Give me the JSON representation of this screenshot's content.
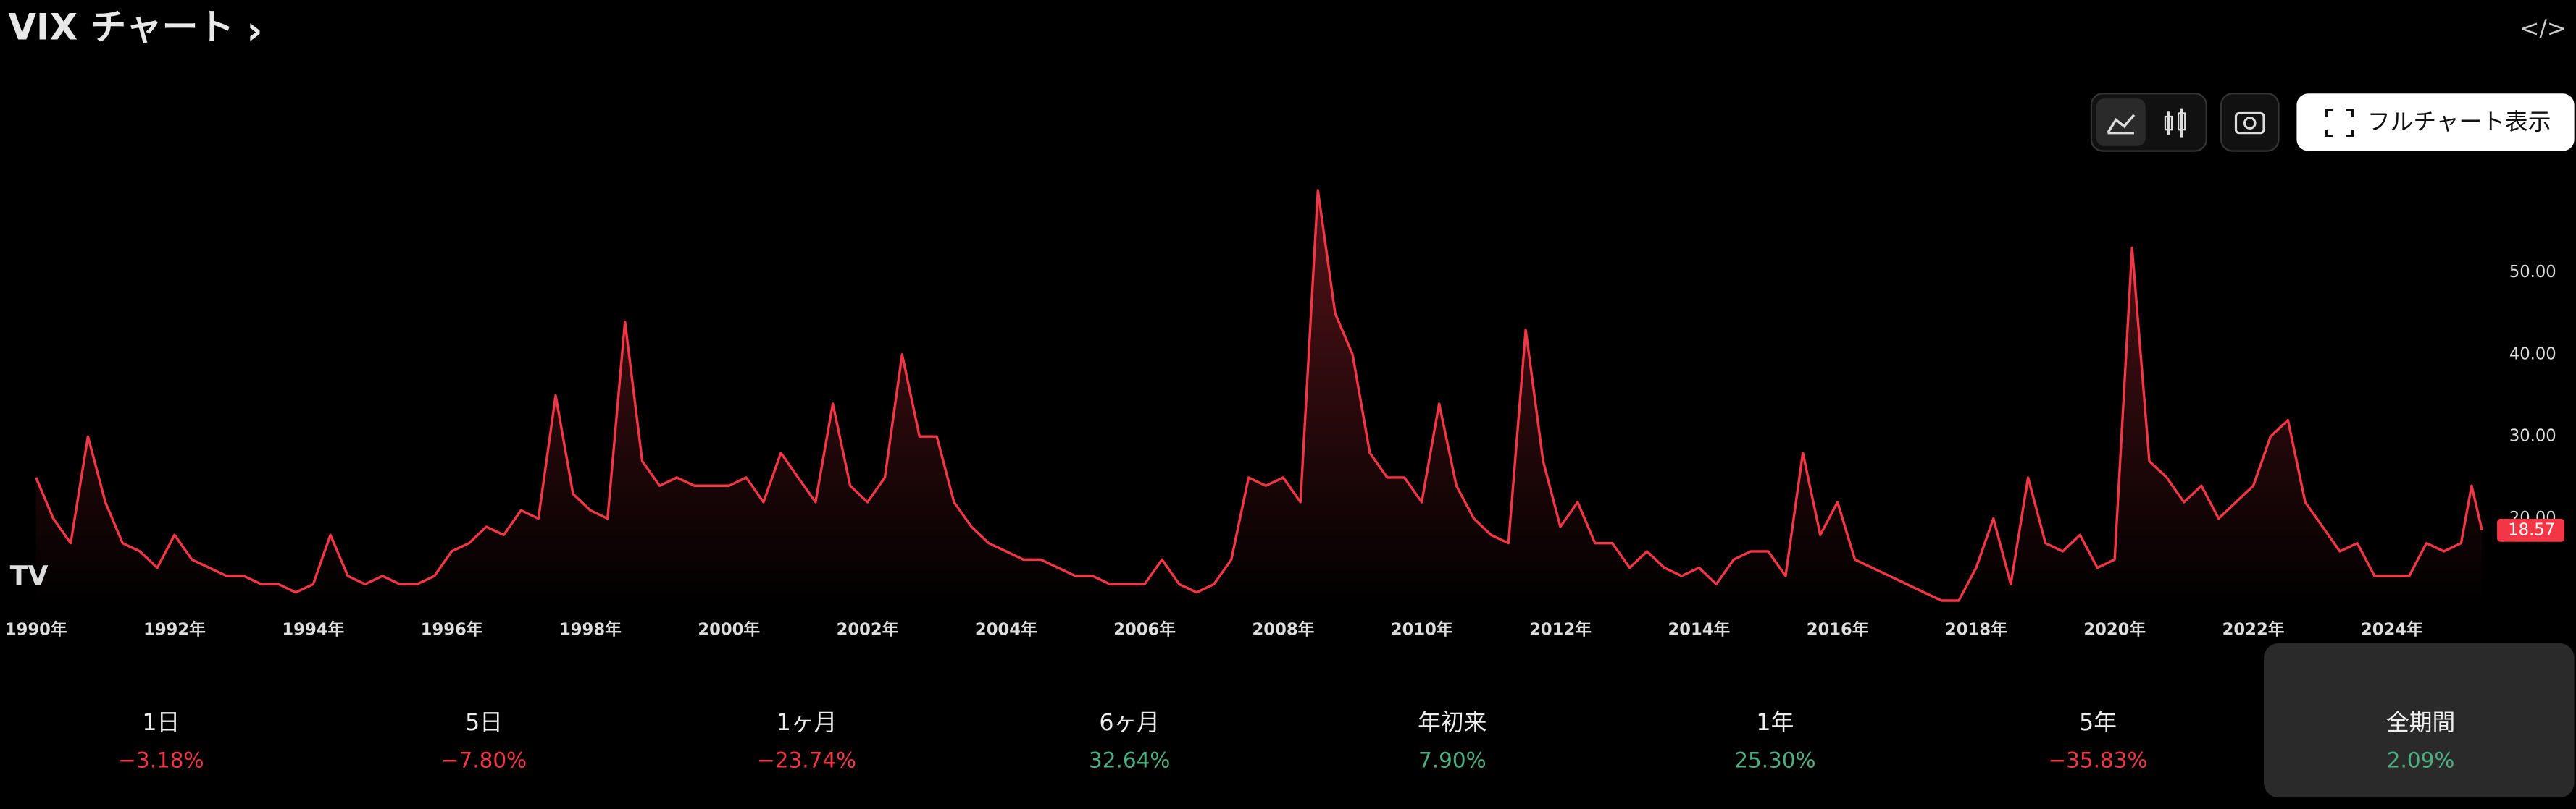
{
  "header": {
    "title": "VIX チャート",
    "chevron": "›",
    "embed": "</>"
  },
  "toolbar": {
    "full_chart": "フルチャート表示"
  },
  "chart_data": {
    "type": "area",
    "color": "#f23645",
    "x": [
      1990,
      1990.25,
      1990.5,
      1990.75,
      1991,
      1991.25,
      1991.5,
      1991.75,
      1992,
      1992.25,
      1992.5,
      1992.75,
      1993,
      1993.25,
      1993.5,
      1993.75,
      1994,
      1994.25,
      1994.5,
      1994.75,
      1995,
      1995.25,
      1995.5,
      1995.75,
      1996,
      1996.25,
      1996.5,
      1996.75,
      1997,
      1997.25,
      1997.5,
      1997.75,
      1998,
      1998.25,
      1998.5,
      1998.75,
      1999,
      1999.25,
      1999.5,
      1999.75,
      2000,
      2000.25,
      2000.5,
      2000.75,
      2001,
      2001.25,
      2001.5,
      2001.75,
      2002,
      2002.25,
      2002.5,
      2002.75,
      2003,
      2003.25,
      2003.5,
      2003.75,
      2004,
      2004.25,
      2004.5,
      2004.75,
      2005,
      2005.25,
      2005.5,
      2005.75,
      2006,
      2006.25,
      2006.5,
      2006.75,
      2007,
      2007.25,
      2007.5,
      2007.75,
      2008,
      2008.25,
      2008.5,
      2008.75,
      2009,
      2009.25,
      2009.5,
      2009.75,
      2010,
      2010.25,
      2010.5,
      2010.75,
      2011,
      2011.25,
      2011.5,
      2011.75,
      2012,
      2012.25,
      2012.5,
      2012.75,
      2013,
      2013.25,
      2013.5,
      2013.75,
      2014,
      2014.25,
      2014.5,
      2014.75,
      2015,
      2015.25,
      2015.5,
      2015.75,
      2016,
      2016.25,
      2016.5,
      2016.75,
      2017,
      2017.25,
      2017.5,
      2017.75,
      2018,
      2018.25,
      2018.5,
      2018.75,
      2019,
      2019.25,
      2019.5,
      2019.75,
      2020,
      2020.25,
      2020.5,
      2020.75,
      2021,
      2021.25,
      2021.5,
      2021.75,
      2022,
      2022.25,
      2022.5,
      2022.75,
      2023,
      2023.25,
      2023.5,
      2023.75,
      2024,
      2024.25,
      2024.5,
      2024.75,
      2025,
      2025.15,
      2025.3
    ],
    "values": [
      25,
      20,
      17,
      30,
      22,
      17,
      16,
      14,
      18,
      15,
      14,
      13,
      13,
      12,
      12,
      11,
      12,
      18,
      13,
      12,
      13,
      12,
      12,
      13,
      16,
      17,
      19,
      18,
      21,
      20,
      35,
      23,
      21,
      20,
      44,
      27,
      24,
      25,
      24,
      24,
      24,
      25,
      22,
      28,
      25,
      22,
      34,
      24,
      22,
      25,
      40,
      30,
      30,
      22,
      19,
      17,
      16,
      15,
      15,
      14,
      13,
      13,
      12,
      12,
      12,
      15,
      12,
      11,
      12,
      15,
      25,
      24,
      25,
      22,
      60,
      45,
      40,
      28,
      25,
      25,
      22,
      34,
      24,
      20,
      18,
      17,
      43,
      27,
      19,
      22,
      17,
      17,
      14,
      16,
      14,
      13,
      14,
      12,
      15,
      16,
      16,
      13,
      28,
      18,
      22,
      15,
      14,
      13,
      12,
      11,
      10,
      10,
      14,
      20,
      12,
      25,
      17,
      16,
      18,
      14,
      15,
      53,
      27,
      25,
      22,
      24,
      20,
      22,
      24,
      30,
      32,
      22,
      19,
      16,
      17,
      13,
      13,
      13,
      17,
      16,
      17,
      24,
      18.57
    ],
    "xlim": [
      1989.6,
      2025.4
    ],
    "ylim": [
      9.2,
      63.2
    ],
    "xticks": [
      {
        "value": 1990,
        "label": "1990年"
      },
      {
        "value": 1992,
        "label": "1992年"
      },
      {
        "value": 1994,
        "label": "1994年"
      },
      {
        "value": 1996,
        "label": "1996年"
      },
      {
        "value": 1998,
        "label": "1998年"
      },
      {
        "value": 2000,
        "label": "2000年"
      },
      {
        "value": 2002,
        "label": "2002年"
      },
      {
        "value": 2004,
        "label": "2004年"
      },
      {
        "value": 2006,
        "label": "2006年"
      },
      {
        "value": 2008,
        "label": "2008年"
      },
      {
        "value": 2010,
        "label": "2010年"
      },
      {
        "value": 2012,
        "label": "2012年"
      },
      {
        "value": 2014,
        "label": "2014年"
      },
      {
        "value": 2016,
        "label": "2016年"
      },
      {
        "value": 2018,
        "label": "2018年"
      },
      {
        "value": 2020,
        "label": "2020年"
      },
      {
        "value": 2022,
        "label": "2022年"
      },
      {
        "value": 2024,
        "label": "2024年"
      }
    ],
    "yticks": [
      {
        "value": 20,
        "label": "20.00"
      },
      {
        "value": 30,
        "label": "30.00"
      },
      {
        "value": 40,
        "label": "40.00"
      },
      {
        "value": 50,
        "label": "50.00"
      }
    ]
  },
  "performance": [
    {
      "label": "1日",
      "value": "−3.18%"
    },
    {
      "label": "5日",
      "value": "−7.80%"
    },
    {
      "label": "1ヶ月",
      "value": "−23.74%"
    },
    {
      "label": "6ヶ月",
      "value": "32.64%"
    },
    {
      "label": "年初来",
      "value": "7.90%"
    },
    {
      "label": "1年",
      "value": "25.30%"
    },
    {
      "label": "5年",
      "value": "−35.83%"
    },
    {
      "label": "全期間",
      "value": "2.09%"
    }
  ]
}
